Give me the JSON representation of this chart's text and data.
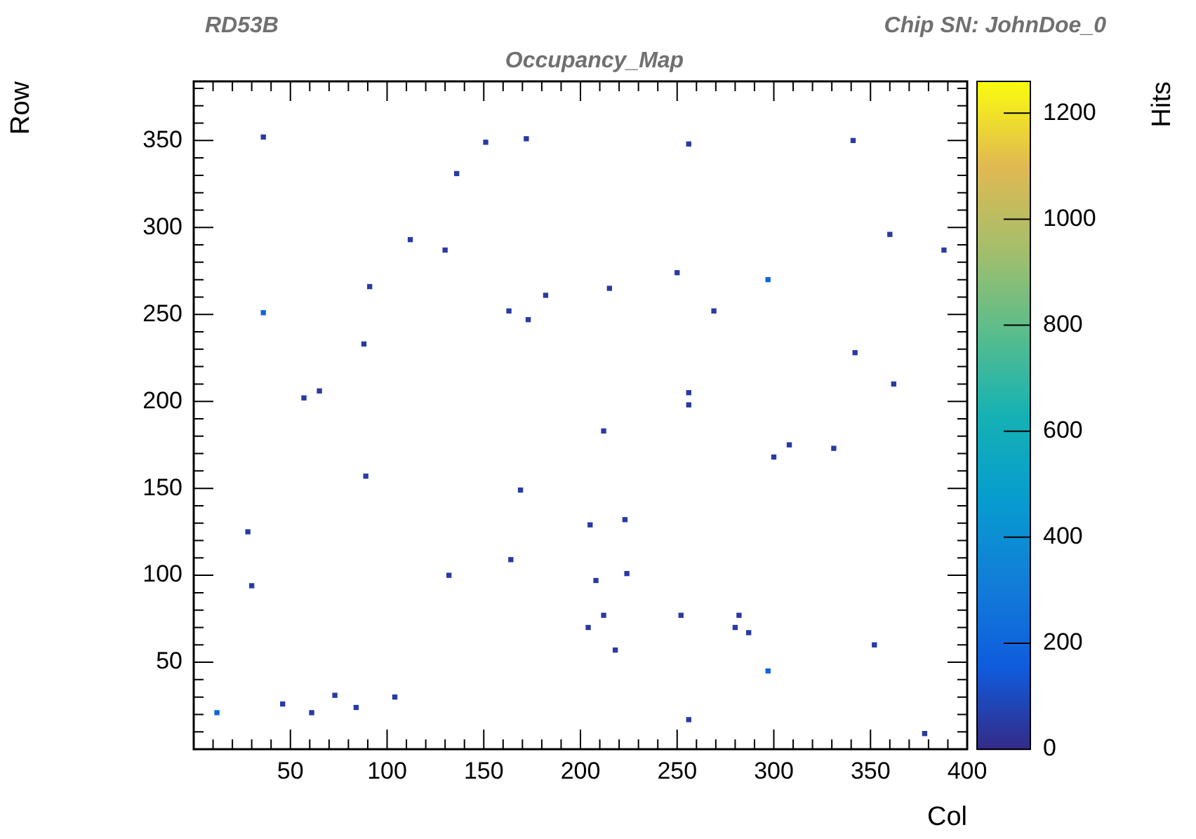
{
  "chart_data": {
    "type": "scatter",
    "title": "Occupancy_Map",
    "xlabel": "Col",
    "ylabel": "Row",
    "clabel": "Hits",
    "annotations": [
      "RD53B",
      "Chip SN: JohnDoe_0"
    ],
    "marker": "square",
    "grid": false,
    "xlim": [
      0,
      400
    ],
    "xticks": [
      {
        "value": 0,
        "label": null
      },
      {
        "value": 10,
        "label": null
      },
      {
        "value": 20,
        "label": null
      },
      {
        "value": 30,
        "label": null
      },
      {
        "value": 40,
        "label": null
      },
      50,
      {
        "value": 60,
        "label": null
      },
      {
        "value": 70,
        "label": null
      },
      {
        "value": 80,
        "label": null
      },
      {
        "value": 90,
        "label": null
      },
      100,
      {
        "value": 110,
        "label": null
      },
      {
        "value": 120,
        "label": null
      },
      {
        "value": 130,
        "label": null
      },
      {
        "value": 140,
        "label": null
      },
      150,
      {
        "value": 160,
        "label": null
      },
      {
        "value": 170,
        "label": null
      },
      {
        "value": 180,
        "label": null
      },
      {
        "value": 190,
        "label": null
      },
      200,
      {
        "value": 210,
        "label": null
      },
      {
        "value": 220,
        "label": null
      },
      {
        "value": 230,
        "label": null
      },
      {
        "value": 240,
        "label": null
      },
      250,
      {
        "value": 260,
        "label": null
      },
      {
        "value": 270,
        "label": null
      },
      {
        "value": 280,
        "label": null
      },
      {
        "value": 290,
        "label": null
      },
      300,
      {
        "value": 310,
        "label": null
      },
      {
        "value": 320,
        "label": null
      },
      {
        "value": 330,
        "label": null
      },
      {
        "value": 340,
        "label": null
      },
      350,
      {
        "value": 360,
        "label": null
      },
      {
        "value": 370,
        "label": null
      },
      {
        "value": 380,
        "label": null
      },
      {
        "value": 390,
        "label": null
      },
      400
    ],
    "ylim": [
      0,
      384
    ],
    "yticks": [
      {
        "value": 0,
        "label": null
      },
      {
        "value": 10,
        "label": null
      },
      {
        "value": 20,
        "label": null
      },
      {
        "value": 30,
        "label": null
      },
      {
        "value": 40,
        "label": null
      },
      50,
      {
        "value": 60,
        "label": null
      },
      {
        "value": 70,
        "label": null
      },
      {
        "value": 80,
        "label": null
      },
      {
        "value": 90,
        "label": null
      },
      100,
      {
        "value": 110,
        "label": null
      },
      {
        "value": 120,
        "label": null
      },
      {
        "value": 130,
        "label": null
      },
      {
        "value": 140,
        "label": null
      },
      150,
      {
        "value": 160,
        "label": null
      },
      {
        "value": 170,
        "label": null
      },
      {
        "value": 180,
        "label": null
      },
      {
        "value": 190,
        "label": null
      },
      200,
      {
        "value": 210,
        "label": null
      },
      {
        "value": 220,
        "label": null
      },
      {
        "value": 230,
        "label": null
      },
      {
        "value": 240,
        "label": null
      },
      250,
      {
        "value": 260,
        "label": null
      },
      {
        "value": 270,
        "label": null
      },
      {
        "value": 280,
        "label": null
      },
      {
        "value": 290,
        "label": null
      },
      300,
      {
        "value": 310,
        "label": null
      },
      {
        "value": 320,
        "label": null
      },
      {
        "value": 330,
        "label": null
      },
      {
        "value": 340,
        "label": null
      },
      350,
      {
        "value": 360,
        "label": null
      },
      {
        "value": 370,
        "label": null
      },
      {
        "value": 380,
        "label": null
      }
    ],
    "clim": [
      0,
      1260
    ],
    "cticks": [
      0,
      200,
      400,
      600,
      800,
      1000,
      1200
    ],
    "x": [
      36,
      151,
      172,
      136,
      112,
      130,
      91,
      182,
      36,
      163,
      173,
      88,
      65,
      57,
      256,
      341,
      360,
      388,
      250,
      297,
      215,
      269,
      342,
      362,
      256,
      256,
      89,
      169,
      28,
      164,
      132,
      30,
      12,
      46,
      61,
      73,
      84,
      104,
      212,
      300,
      308,
      331,
      205,
      223,
      224,
      208,
      212,
      252,
      282,
      204,
      280,
      287,
      218,
      352,
      297,
      256,
      378
    ],
    "values": [
      352,
      349,
      351,
      331,
      293,
      287,
      266,
      261,
      251,
      252,
      247,
      233,
      206,
      202,
      348,
      350,
      296,
      287,
      274,
      270,
      265,
      252,
      228,
      210,
      205,
      198,
      157,
      149,
      125,
      109,
      100,
      94,
      21,
      26,
      21,
      31,
      24,
      30,
      183,
      168,
      175,
      173,
      129,
      132,
      101,
      97,
      77,
      77,
      77,
      70,
      70,
      67,
      57,
      60,
      45,
      17,
      9
    ],
    "cvalues": [
      50,
      50,
      50,
      50,
      50,
      50,
      50,
      50,
      200,
      50,
      50,
      50,
      50,
      50,
      50,
      50,
      50,
      50,
      50,
      200,
      50,
      50,
      50,
      50,
      50,
      50,
      50,
      50,
      50,
      50,
      50,
      50,
      200,
      50,
      50,
      50,
      50,
      50,
      50,
      50,
      50,
      50,
      50,
      50,
      50,
      50,
      50,
      50,
      50,
      50,
      50,
      50,
      50,
      50,
      200,
      50,
      50
    ]
  }
}
